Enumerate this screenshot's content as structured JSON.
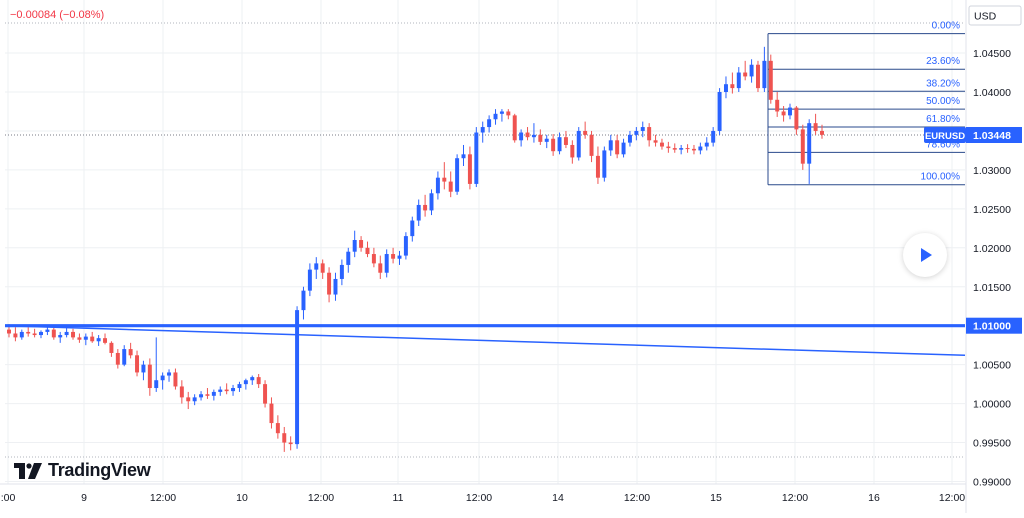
{
  "header": {
    "change_text": "−0.00084 (−0.08%)"
  },
  "brand": {
    "name": "TradingView"
  },
  "price_axis": {
    "currency_label": "USD",
    "symbol_tag": "EURUSD",
    "last_price_label": "1.03448",
    "level_label": "1.01000"
  },
  "colors": {
    "up": "#2962ff",
    "down": "#ef5350",
    "fib_line": "#2a4a8c",
    "fib_text": "#2962ff",
    "grid": "#eef0f3",
    "axis_text": "#131722",
    "trend": "#2962ff"
  },
  "chart_data": {
    "type": "candlestick",
    "symbol": "EURUSD",
    "ylim": [
      0.99,
      1.048
    ],
    "y_ticks": [
      "1.04500",
      "1.04000",
      "1.03500",
      "1.03000",
      "1.02500",
      "1.02000",
      "1.01500",
      "1.01000",
      "1.00500",
      "1.00000",
      "0.99500",
      "0.99000"
    ],
    "x_ticks": [
      ":00",
      "9",
      "12:00",
      "10",
      "12:00",
      "11",
      "12:00",
      "14",
      "12:00",
      "15",
      "12:00",
      "16",
      "12:00"
    ],
    "candles": [
      [
        1.0095,
        1.0102,
        1.0085,
        1.009
      ],
      [
        1.009,
        1.0098,
        1.008,
        1.0085
      ],
      [
        1.0085,
        1.0095,
        1.0082,
        1.0092
      ],
      [
        1.0092,
        1.0098,
        1.0086,
        1.009
      ],
      [
        1.009,
        1.0096,
        1.0085,
        1.0088
      ],
      [
        1.0088,
        1.0094,
        1.0084,
        1.0092
      ],
      [
        1.0092,
        1.01,
        1.0088,
        1.0095
      ],
      [
        1.0095,
        1.01,
        1.0082,
        1.0085
      ],
      [
        1.0085,
        1.0092,
        1.0078,
        1.0088
      ],
      [
        1.0088,
        1.0098,
        1.0085,
        1.0092
      ],
      [
        1.0092,
        1.0096,
        1.0082,
        1.0085
      ],
      [
        1.0085,
        1.009,
        1.0078,
        1.0082
      ],
      [
        1.0082,
        1.009,
        1.0075,
        1.0086
      ],
      [
        1.0086,
        1.0092,
        1.0078,
        1.008
      ],
      [
        1.008,
        1.0088,
        1.0074,
        1.0084
      ],
      [
        1.0084,
        1.009,
        1.0076,
        1.0078
      ],
      [
        1.0078,
        1.008,
        1.006,
        1.0065
      ],
      [
        1.0065,
        1.007,
        1.0045,
        1.005
      ],
      [
        1.005,
        1.0075,
        1.0048,
        1.007
      ],
      [
        1.007,
        1.0078,
        1.0058,
        1.0062
      ],
      [
        1.0062,
        1.0068,
        1.0035,
        1.004
      ],
      [
        1.004,
        1.0055,
        1.003,
        1.005
      ],
      [
        1.005,
        1.0058,
        1.001,
        1.002
      ],
      [
        1.002,
        1.0085,
        1.0015,
        1.003
      ],
      [
        1.003,
        1.004,
        1.0018,
        1.0036
      ],
      [
        1.0036,
        1.0044,
        1.0028,
        1.004
      ],
      [
        1.004,
        1.0045,
        1.0018,
        1.0022
      ],
      [
        1.0022,
        1.003,
        1.0,
        1.0008
      ],
      [
        1.0008,
        1.0015,
        0.9993,
        1.0003
      ],
      [
        1.0003,
        1.0012,
        0.9998,
        1.0008
      ],
      [
        1.0008,
        1.0016,
        1.0004,
        1.0012
      ],
      [
        1.0012,
        1.002,
        1.0006,
        1.001
      ],
      [
        1.001,
        1.0018,
        1.0004,
        1.0015
      ],
      [
        1.0015,
        1.0022,
        1.001,
        1.0018
      ],
      [
        1.0018,
        1.0026,
        1.0012,
        1.0016
      ],
      [
        1.0016,
        1.0024,
        1.001,
        1.002
      ],
      [
        1.002,
        1.0028,
        1.0015,
        1.0025
      ],
      [
        1.0025,
        1.0032,
        1.0018,
        1.003
      ],
      [
        1.003,
        1.0036,
        1.0024,
        1.0034
      ],
      [
        1.0034,
        1.0038,
        1.002,
        1.0025
      ],
      [
        1.0025,
        1.003,
        0.9995,
        1.0
      ],
      [
        1.0,
        1.0008,
        0.9968,
        0.9975
      ],
      [
        0.9975,
        0.9985,
        0.9955,
        0.9962
      ],
      [
        0.9962,
        0.997,
        0.9938,
        0.995
      ],
      [
        0.995,
        0.9958,
        0.994,
        0.9948
      ],
      [
        0.9948,
        1.0125,
        0.9942,
        1.012
      ],
      [
        1.012,
        1.015,
        1.0108,
        1.0145
      ],
      [
        1.0145,
        1.018,
        1.0138,
        1.0172
      ],
      [
        1.0172,
        1.0188,
        1.016,
        1.018
      ],
      [
        1.018,
        1.0185,
        1.016,
        1.0168
      ],
      [
        1.0168,
        1.0175,
        1.013,
        1.014
      ],
      [
        1.014,
        1.0168,
        1.0132,
        1.016
      ],
      [
        1.016,
        1.0185,
        1.0152,
        1.0178
      ],
      [
        1.0178,
        1.02,
        1.0168,
        1.0195
      ],
      [
        1.0195,
        1.0222,
        1.0188,
        1.021
      ],
      [
        1.021,
        1.0215,
        1.0195,
        1.02
      ],
      [
        1.02,
        1.0208,
        1.0188,
        1.0192
      ],
      [
        1.0192,
        1.02,
        1.0175,
        1.018
      ],
      [
        1.018,
        1.019,
        1.016,
        1.0168
      ],
      [
        1.0168,
        1.0198,
        1.0162,
        1.0192
      ],
      [
        1.0192,
        1.02,
        1.018,
        1.0186
      ],
      [
        1.0186,
        1.0196,
        1.0178,
        1.019
      ],
      [
        1.019,
        1.022,
        1.0185,
        1.0215
      ],
      [
        1.0215,
        1.024,
        1.0208,
        1.0235
      ],
      [
        1.0235,
        1.0262,
        1.0228,
        1.0255
      ],
      [
        1.0255,
        1.0268,
        1.024,
        1.0248
      ],
      [
        1.0248,
        1.0275,
        1.0242,
        1.027
      ],
      [
        1.027,
        1.0298,
        1.0262,
        1.029
      ],
      [
        1.029,
        1.031,
        1.0275,
        1.0285
      ],
      [
        1.0285,
        1.0298,
        1.0265,
        1.0272
      ],
      [
        1.0272,
        1.032,
        1.0268,
        1.0315
      ],
      [
        1.0315,
        1.0332,
        1.0305,
        1.032
      ],
      [
        1.032,
        1.033,
        1.0275,
        1.0282
      ],
      [
        1.0282,
        1.0355,
        1.0278,
        1.0348
      ],
      [
        1.0348,
        1.0362,
        1.0335,
        1.0355
      ],
      [
        1.0355,
        1.037,
        1.0348,
        1.0365
      ],
      [
        1.0365,
        1.0378,
        1.0358,
        1.0372
      ],
      [
        1.0372,
        1.0378,
        1.0362,
        1.0375
      ],
      [
        1.0375,
        1.0378,
        1.0365,
        1.037
      ],
      [
        1.037,
        1.0372,
        1.0335,
        1.0338
      ],
      [
        1.0338,
        1.0352,
        1.033,
        1.0348
      ],
      [
        1.0348,
        1.0355,
        1.0338,
        1.0342
      ],
      [
        1.0342,
        1.036,
        1.0335,
        1.0345
      ],
      [
        1.0345,
        1.0352,
        1.0332,
        1.0336
      ],
      [
        1.0336,
        1.0345,
        1.0328,
        1.034
      ],
      [
        1.034,
        1.0346,
        1.0318,
        1.0324
      ],
      [
        1.0324,
        1.0348,
        1.032,
        1.0342
      ],
      [
        1.0342,
        1.035,
        1.0328,
        1.0332
      ],
      [
        1.0332,
        1.0338,
        1.0308,
        1.0316
      ],
      [
        1.0316,
        1.0355,
        1.0312,
        1.035
      ],
      [
        1.035,
        1.0362,
        1.034,
        1.0345
      ],
      [
        1.0345,
        1.035,
        1.031,
        1.0318
      ],
      [
        1.0318,
        1.033,
        1.0282,
        1.029
      ],
      [
        1.029,
        1.033,
        1.0285,
        1.0325
      ],
      [
        1.0325,
        1.0345,
        1.0318,
        1.0338
      ],
      [
        1.0338,
        1.0345,
        1.0315,
        1.032
      ],
      [
        1.032,
        1.034,
        1.0316,
        1.0335
      ],
      [
        1.0335,
        1.035,
        1.033,
        1.0345
      ],
      [
        1.0345,
        1.0355,
        1.0338,
        1.035
      ],
      [
        1.035,
        1.0362,
        1.0342,
        1.0355
      ],
      [
        1.0355,
        1.036,
        1.033,
        1.0338
      ],
      [
        1.0338,
        1.0345,
        1.033,
        1.0335
      ],
      [
        1.0335,
        1.034,
        1.0326,
        1.033
      ],
      [
        1.033,
        1.0336,
        1.0322,
        1.0328
      ],
      [
        1.0328,
        1.0334,
        1.0322,
        1.0326
      ],
      [
        1.0326,
        1.0332,
        1.032,
        1.0328
      ],
      [
        1.0328,
        1.0333,
        1.0322,
        1.0327
      ],
      [
        1.0327,
        1.0332,
        1.032,
        1.0325
      ],
      [
        1.0325,
        1.0335,
        1.032,
        1.033
      ],
      [
        1.033,
        1.0342,
        1.0325,
        1.0335
      ],
      [
        1.0335,
        1.0355,
        1.033,
        1.035
      ],
      [
        1.035,
        1.0405,
        1.0345,
        1.04
      ],
      [
        1.04,
        1.042,
        1.0392,
        1.041
      ],
      [
        1.041,
        1.0425,
        1.0398,
        1.0405
      ],
      [
        1.0405,
        1.0432,
        1.04,
        1.0425
      ],
      [
        1.0425,
        1.044,
        1.0415,
        1.042
      ],
      [
        1.042,
        1.0442,
        1.0412,
        1.0435
      ],
      [
        1.0435,
        1.044,
        1.04,
        1.0405
      ],
      [
        1.0405,
        1.0458,
        1.04,
        1.044
      ],
      [
        1.044,
        1.0448,
        1.0385,
        1.039
      ],
      [
        1.039,
        1.04,
        1.0368,
        1.0375
      ],
      [
        1.0375,
        1.0382,
        1.0362,
        1.037
      ],
      [
        1.037,
        1.0385,
        1.0365,
        1.038
      ],
      [
        1.038,
        1.0382,
        1.0345,
        1.0352
      ],
      [
        1.0352,
        1.0358,
        1.03,
        1.0308
      ],
      [
        1.0308,
        1.0365,
        1.0282,
        1.036
      ],
      [
        1.036,
        1.0372,
        1.0345,
        1.035
      ],
      [
        1.035,
        1.0358,
        1.034,
        1.0345
      ]
    ],
    "horizontal_level": 1.01,
    "trendline": {
      "start": 1.01,
      "end": 1.0062
    },
    "fibonacci": {
      "high": 1.0475,
      "low": 1.0281,
      "levels": [
        {
          "ratio": 0.0,
          "label": "0.00%"
        },
        {
          "ratio": 0.236,
          "label": "23.60%"
        },
        {
          "ratio": 0.382,
          "label": "38.20%"
        },
        {
          "ratio": 0.5,
          "label": "50.00%"
        },
        {
          "ratio": 0.618,
          "label": "61.80%"
        },
        {
          "ratio": 0.786,
          "label": "78.60%"
        },
        {
          "ratio": 1.0,
          "label": "100.00%"
        }
      ]
    }
  }
}
